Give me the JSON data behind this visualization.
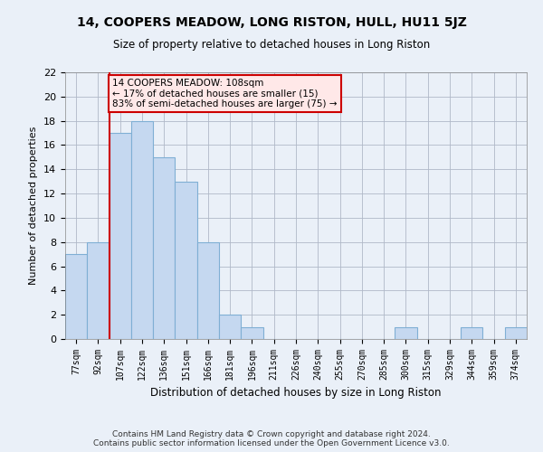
{
  "title": "14, COOPERS MEADOW, LONG RISTON, HULL, HU11 5JZ",
  "subtitle": "Size of property relative to detached houses in Long Riston",
  "xlabel": "Distribution of detached houses by size in Long Riston",
  "ylabel": "Number of detached properties",
  "footer_line1": "Contains HM Land Registry data © Crown copyright and database right 2024.",
  "footer_line2": "Contains public sector information licensed under the Open Government Licence v3.0.",
  "categories": [
    "77sqm",
    "92sqm",
    "107sqm",
    "122sqm",
    "136sqm",
    "151sqm",
    "166sqm",
    "181sqm",
    "196sqm",
    "211sqm",
    "226sqm",
    "240sqm",
    "255sqm",
    "270sqm",
    "285sqm",
    "300sqm",
    "315sqm",
    "329sqm",
    "344sqm",
    "359sqm",
    "374sqm"
  ],
  "values": [
    7,
    8,
    17,
    18,
    15,
    13,
    8,
    2,
    1,
    0,
    0,
    0,
    0,
    0,
    0,
    1,
    0,
    0,
    1,
    0,
    1
  ],
  "bar_color": "#c5d8f0",
  "bar_edge_color": "#7fafd4",
  "grid_color": "#b0b8c8",
  "background_color": "#eaf0f8",
  "annotation_box_text": "14 COOPERS MEADOW: 108sqm\n← 17% of detached houses are smaller (15)\n83% of semi-detached houses are larger (75) →",
  "annotation_box_color": "#ffe8e8",
  "annotation_box_edge_color": "#cc0000",
  "vline_x_index": 2,
  "vline_color": "#cc0000",
  "ylim": [
    0,
    22
  ],
  "yticks": [
    0,
    2,
    4,
    6,
    8,
    10,
    12,
    14,
    16,
    18,
    20,
    22
  ]
}
